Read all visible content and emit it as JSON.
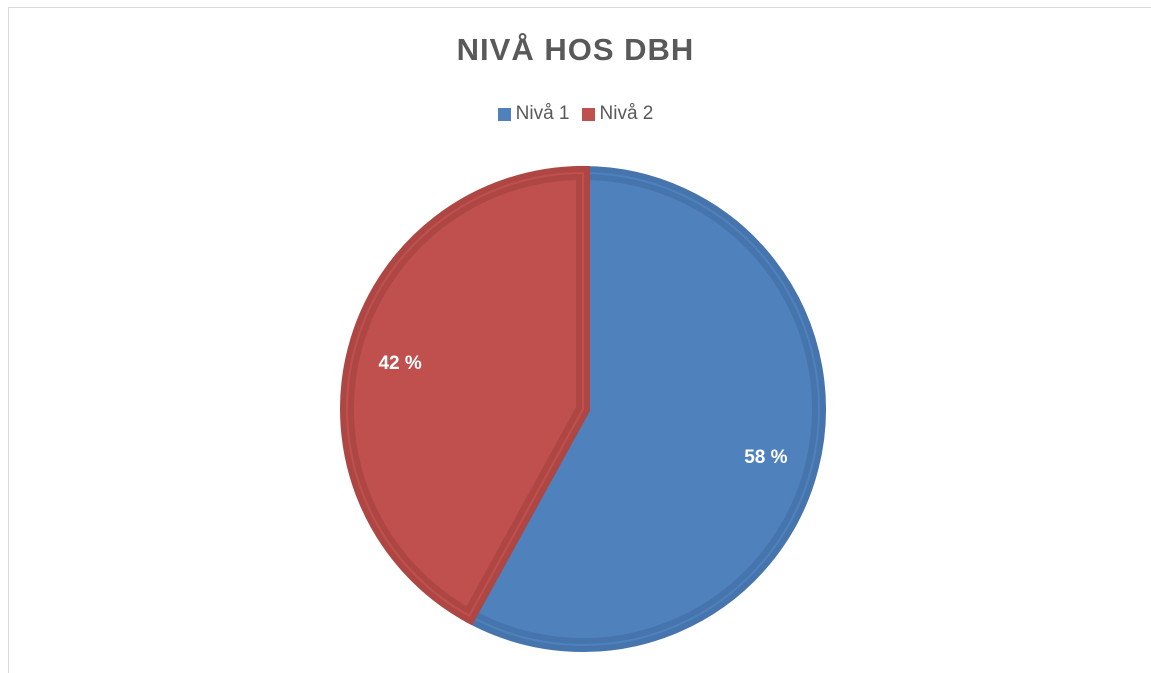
{
  "chart_data": {
    "type": "pie",
    "title": "NIVÅ HOS DBH",
    "legend_position": "top",
    "categories": [
      "Nivå 1",
      "Nivå 2"
    ],
    "values": [
      58,
      42
    ],
    "labels": [
      "58 %",
      "42 %"
    ],
    "colors": [
      "#4f81bd",
      "#c0504d"
    ],
    "edge_colors": [
      "#4675ae",
      "#ae4744"
    ]
  }
}
